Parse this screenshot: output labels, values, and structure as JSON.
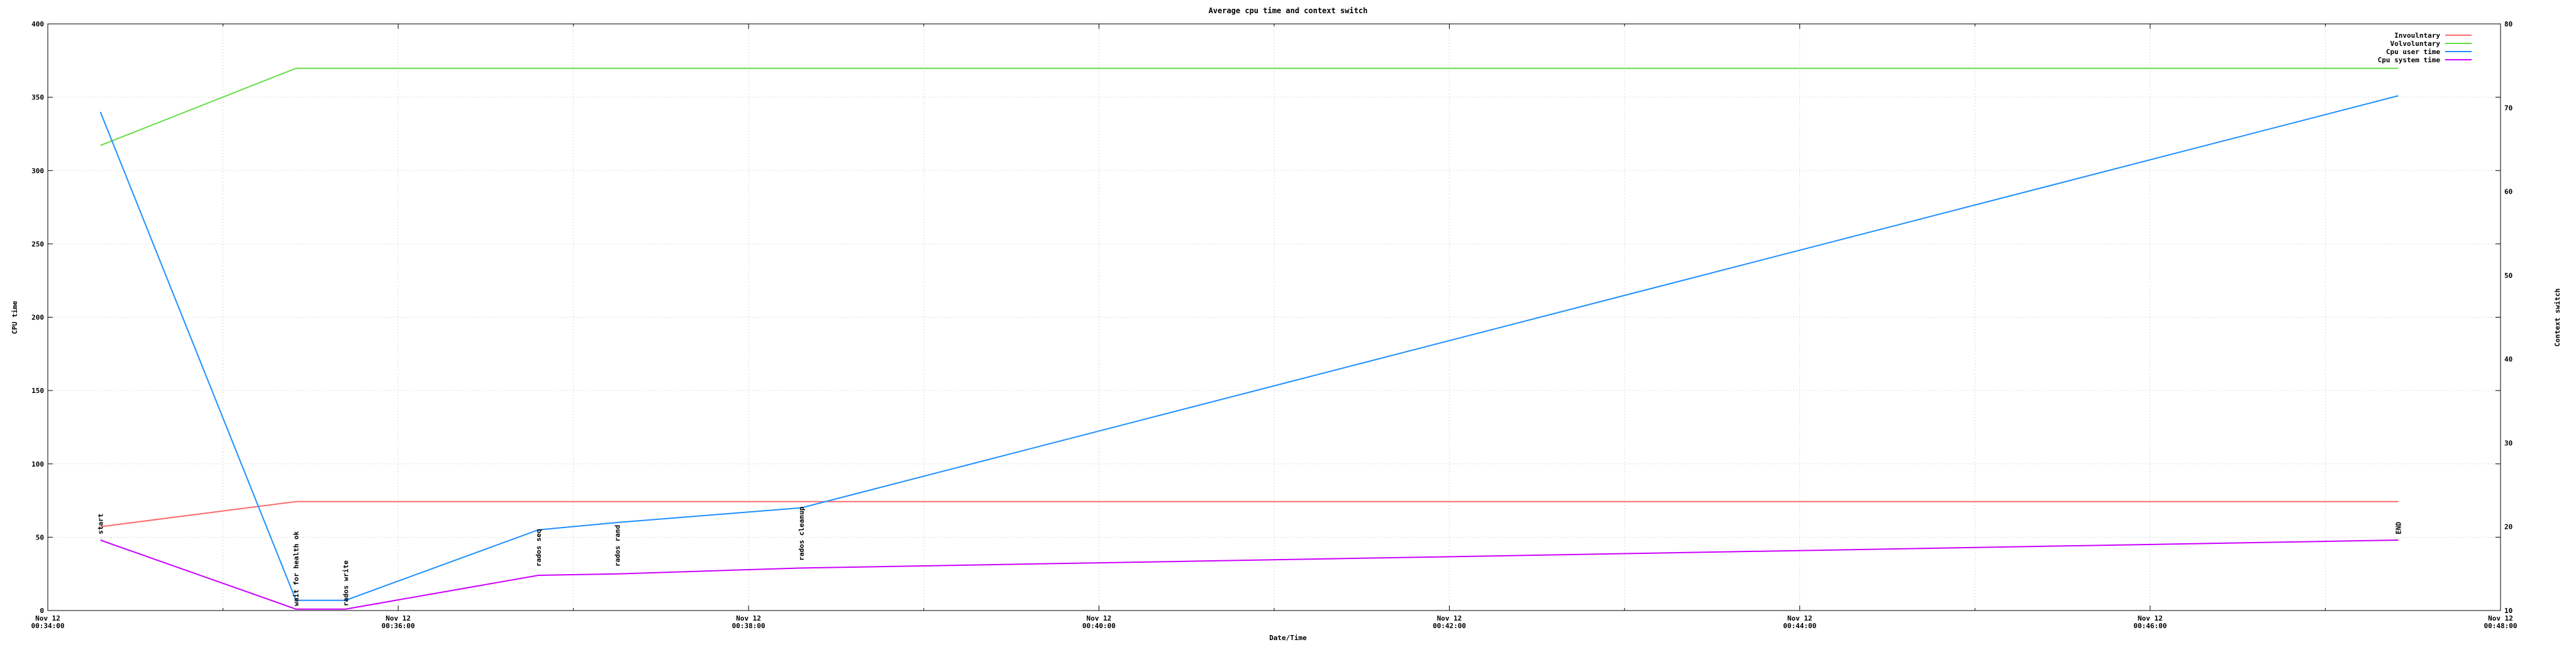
{
  "chart_data": {
    "type": "line",
    "title": "Average cpu time and context switch",
    "xlabel": "Date/Time",
    "ylabel": "CPU time",
    "y2label": "Context switch",
    "x_ticks": [
      {
        "line1": "Nov 12",
        "line2": "00:34:00"
      },
      {
        "line1": "Nov 12",
        "line2": "00:36:00"
      },
      {
        "line1": "Nov 12",
        "line2": "00:38:00"
      },
      {
        "line1": "Nov 12",
        "line2": "00:40:00"
      },
      {
        "line1": "Nov 12",
        "line2": "00:42:00"
      },
      {
        "line1": "Nov 12",
        "line2": "00:44:00"
      },
      {
        "line1": "Nov 12",
        "line2": "00:46:00"
      },
      {
        "line1": "Nov 12",
        "line2": "00:48:00"
      }
    ],
    "xlim": [
      "00:34:00",
      "00:48:00"
    ],
    "ylim": [
      0,
      400
    ],
    "y_ticks": [
      0,
      50,
      100,
      150,
      200,
      250,
      300,
      350,
      400
    ],
    "y2lim": [
      10,
      80
    ],
    "y2_ticks": [
      10,
      20,
      30,
      40,
      50,
      60,
      70,
      80
    ],
    "grid": true,
    "legend_position": "top-right",
    "series": [
      {
        "name": "Invoulntary",
        "axis": "y2",
        "color": "#ff6b6b",
        "points": [
          [
            "00:34:18",
            20.0
          ],
          [
            "00:35:25",
            23.0
          ],
          [
            "00:47:25",
            23.0
          ]
        ]
      },
      {
        "name": "Volvoluntary",
        "axis": "y2",
        "color": "#66dd44",
        "points": [
          [
            "00:34:18",
            65.5
          ],
          [
            "00:35:25",
            74.7
          ],
          [
            "00:47:25",
            74.7
          ]
        ]
      },
      {
        "name": "Cpu user time",
        "axis": "y",
        "color": "#1f8fff",
        "points": [
          [
            "00:34:18",
            340
          ],
          [
            "00:35:25",
            7
          ],
          [
            "00:35:42",
            7
          ],
          [
            "00:36:48",
            55
          ],
          [
            "00:37:15",
            60
          ],
          [
            "00:38:18",
            70
          ],
          [
            "00:47:25",
            351
          ]
        ]
      },
      {
        "name": "Cpu system time",
        "axis": "y",
        "color": "#cc00ff",
        "points": [
          [
            "00:34:18",
            48
          ],
          [
            "00:35:25",
            1
          ],
          [
            "00:35:42",
            1
          ],
          [
            "00:36:48",
            24
          ],
          [
            "00:37:15",
            25
          ],
          [
            "00:38:18",
            29
          ],
          [
            "00:47:25",
            48
          ]
        ]
      }
    ],
    "annotations": [
      {
        "text": "start",
        "time": "00:34:18",
        "y": 52
      },
      {
        "text": "wait for health ok",
        "time": "00:35:25",
        "y": 3
      },
      {
        "text": "rados write",
        "time": "00:35:42",
        "y": 3
      },
      {
        "text": "rados seq",
        "time": "00:36:48",
        "y": 30
      },
      {
        "text": "rados rand",
        "time": "00:37:15",
        "y": 30
      },
      {
        "text": "rados cleanup",
        "time": "00:38:18",
        "y": 34
      },
      {
        "text": "END",
        "time": "00:47:25",
        "y": 52
      }
    ]
  }
}
